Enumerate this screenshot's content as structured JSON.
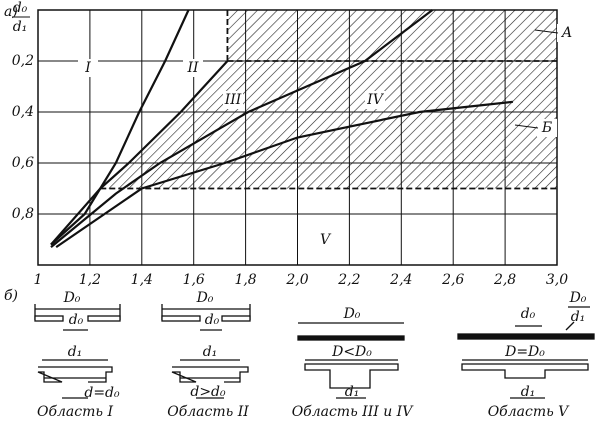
{
  "chart_data": {
    "type": "line",
    "panel_label": "а)",
    "y_label": {
      "numerator": "d₀",
      "denominator": "d₁"
    },
    "xlim": [
      1,
      3.0
    ],
    "xticks": [
      1,
      {
        "value": 1.2,
        "label": "1,2"
      },
      {
        "value": 1.4,
        "label": "1,4"
      },
      {
        "value": 1.6,
        "label": "1,6"
      },
      {
        "value": 1.8,
        "label": "1,8"
      },
      {
        "value": 2.0,
        "label": "2,0"
      },
      {
        "value": 2.2,
        "label": "2,2"
      },
      {
        "value": 2.4,
        "label": "2,4"
      },
      {
        "value": 2.6,
        "label": "2,6"
      },
      {
        "value": 2.8,
        "label": "2,8"
      },
      {
        "value": 3.0,
        "label": "3,0"
      }
    ],
    "ylim": [
      0,
      1
    ],
    "y_inverted": true,
    "yticks": [
      {
        "value": 0.2,
        "label": "0,2"
      },
      {
        "value": 0.4,
        "label": "0,4"
      },
      {
        "value": 0.6,
        "label": "0,6"
      },
      {
        "value": 0.8,
        "label": "0,8"
      }
    ],
    "grid": true,
    "color": "#111111",
    "lines": [
      {
        "x": [
          1.05,
          1.18,
          1.3,
          1.39,
          1.49,
          1.58
        ],
        "values": [
          0.92,
          0.8,
          0.6,
          0.4,
          0.2,
          0
        ]
      },
      {
        "x": [
          1.05,
          1.24,
          1.35,
          1.55,
          1.73
        ],
        "values": [
          0.92,
          0.7,
          0.6,
          0.4,
          0.2
        ]
      },
      {
        "x": [
          1.05,
          1.3,
          1.47,
          1.81,
          2.26,
          2.52
        ],
        "values": [
          0.93,
          0.72,
          0.6,
          0.4,
          0.2,
          0
        ]
      },
      {
        "x": [
          1.07,
          1.4,
          1.72,
          2.0,
          2.47,
          2.83
        ],
        "values": [
          0.93,
          0.7,
          0.6,
          0.5,
          0.4,
          0.36
        ]
      }
    ],
    "dashed_lines": [
      {
        "x": [
          1.73,
          3.0
        ],
        "values": [
          0.2,
          0.2
        ]
      },
      {
        "x": [
          1.73,
          1.73
        ],
        "values": [
          0,
          0.2
        ]
      },
      {
        "x": [
          1.24,
          3.0
        ],
        "values": [
          0.7,
          0.7
        ]
      }
    ],
    "region_labels": [
      "I",
      "II",
      "III",
      "IV",
      "V",
      "А",
      "Б"
    ]
  },
  "sketches": {
    "panel_label": "б)",
    "items": [
      {
        "labels": [
          "D₀",
          "d₀",
          "d₁",
          "d=d₀"
        ],
        "caption": "Область I"
      },
      {
        "labels": [
          "D₀",
          "d₀",
          "d₁",
          "d>d₀"
        ],
        "caption": "Область II"
      },
      {
        "labels": [
          "D₀",
          "D<D₀",
          "d₁"
        ],
        "caption": "Область III и IV"
      },
      {
        "fraction": {
          "numerator": "D₀",
          "denominator": "d₁"
        },
        "labels": [
          "d₀",
          "D=D₀",
          "d₁"
        ],
        "caption": "Область V"
      }
    ]
  }
}
